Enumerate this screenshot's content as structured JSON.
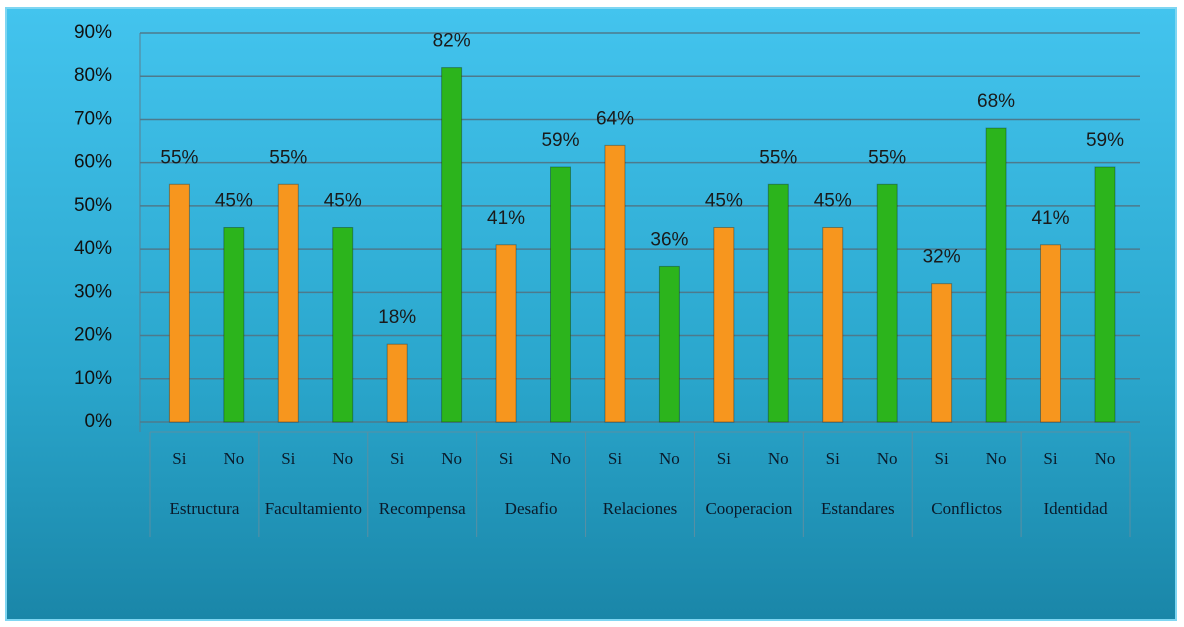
{
  "chart_data": {
    "type": "bar",
    "groups": [
      {
        "name": "Estructura",
        "categories": [
          "Si",
          "No"
        ],
        "values": [
          55,
          45
        ],
        "value_labels": [
          "55%",
          "45%"
        ]
      },
      {
        "name": "Facultamiento",
        "categories": [
          "Si",
          "No"
        ],
        "values": [
          55,
          45
        ],
        "value_labels": [
          "55%",
          "45%"
        ]
      },
      {
        "name": "Recompensa",
        "categories": [
          "Si",
          "No"
        ],
        "values": [
          18,
          82
        ],
        "value_labels": [
          "18%",
          "82%"
        ]
      },
      {
        "name": "Desafio",
        "categories": [
          "Si",
          "No"
        ],
        "values": [
          41,
          59
        ],
        "value_labels": [
          "41%",
          "59%"
        ]
      },
      {
        "name": "Relaciones",
        "categories": [
          "Si",
          "No"
        ],
        "values": [
          64,
          36
        ],
        "value_labels": [
          "64%",
          "36%"
        ]
      },
      {
        "name": "Cooperacion",
        "categories": [
          "Si",
          "No"
        ],
        "values": [
          45,
          55
        ],
        "value_labels": [
          "45%",
          "55%"
        ]
      },
      {
        "name": "Estandares",
        "categories": [
          "Si",
          "No"
        ],
        "values": [
          45,
          55
        ],
        "value_labels": [
          "45%",
          "55%"
        ]
      },
      {
        "name": "Conflictos",
        "categories": [
          "Si",
          "No"
        ],
        "values": [
          32,
          68
        ],
        "value_labels": [
          "32%",
          "68%"
        ]
      },
      {
        "name": "Identidad",
        "categories": [
          "Si",
          "No"
        ],
        "values": [
          41,
          59
        ],
        "value_labels": [
          "41%",
          "59%"
        ]
      }
    ],
    "colors": [
      "#f7961e",
      "#2cb41c"
    ],
    "ylim": [
      0,
      90
    ],
    "yticks": [
      {
        "value": 0,
        "label": "0%"
      },
      {
        "value": 10,
        "label": "10%"
      },
      {
        "value": 20,
        "label": "20%"
      },
      {
        "value": 30,
        "label": "30%"
      },
      {
        "value": 40,
        "label": "40%"
      },
      {
        "value": 50,
        "label": "50%"
      },
      {
        "value": 60,
        "label": "60%"
      },
      {
        "value": 70,
        "label": "70%"
      },
      {
        "value": 80,
        "label": "80%"
      },
      {
        "value": 90,
        "label": "90%"
      }
    ],
    "grid": true
  }
}
